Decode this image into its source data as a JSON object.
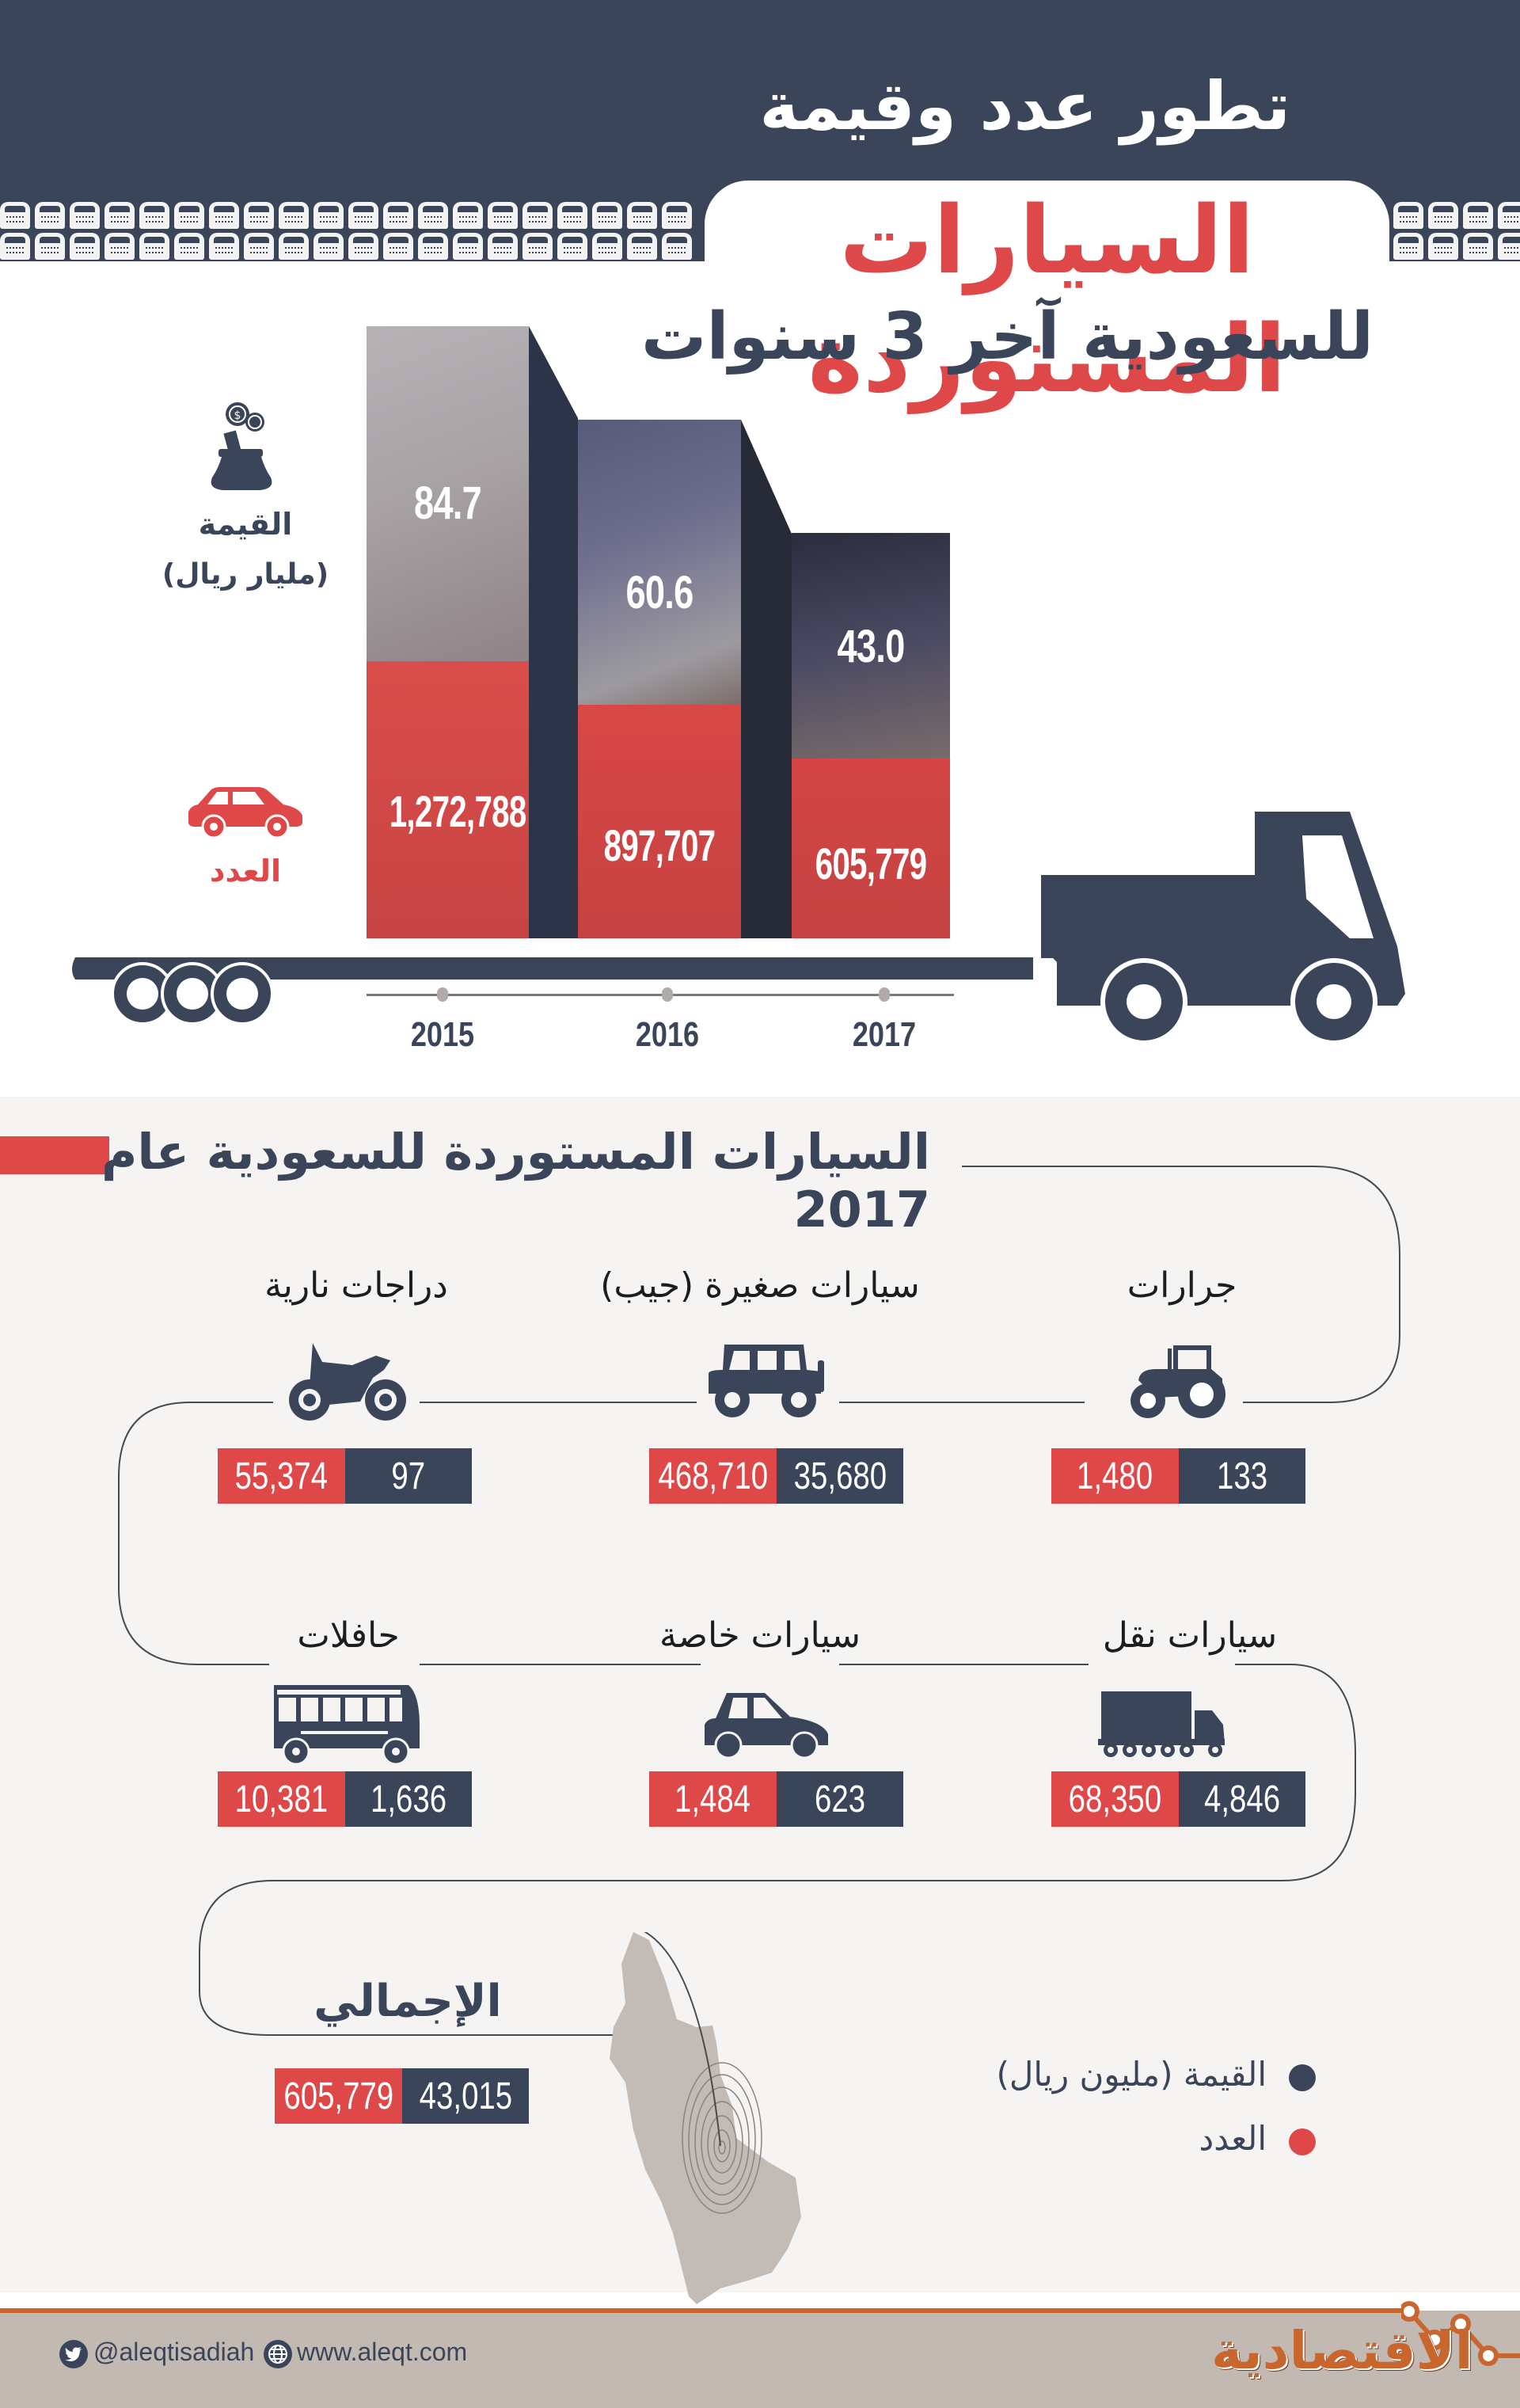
{
  "header": {
    "title_line1": "تطور عدد وقيمة",
    "title_line2": "السيارات المستوردة",
    "title_line3": "للسعودية آخر 3 سنوات"
  },
  "chart_legend": {
    "value_label": "القيمة",
    "value_unit": "(مليار ريال)",
    "count_label": "العدد",
    "value_icon": "money-bag-icon",
    "count_icon": "car-icon"
  },
  "chart_data": {
    "type": "bar",
    "title": "تطور عدد وقيمة السيارات المستوردة للسعودية آخر 3 سنوات",
    "categories": [
      "2015",
      "2016",
      "2017"
    ],
    "series": [
      {
        "name": "القيمة (مليار ريال)",
        "values": [
          84.7,
          60.6,
          43.0
        ],
        "labels": [
          "84.7",
          "60.6",
          "43.0"
        ],
        "color": "#3b4559"
      },
      {
        "name": "العدد",
        "values": [
          1272788,
          897707,
          605779
        ],
        "labels": [
          "1,272,788",
          "897,707",
          "605,779"
        ],
        "color": "#de4848"
      }
    ],
    "xlabel": "",
    "ylabel": "",
    "grid": false,
    "legend_position": "left"
  },
  "breakdown": {
    "title": "السيارات المستوردة للسعودية عام 2017",
    "items": [
      {
        "label": "جرارات",
        "icon": "tractor-icon",
        "count": "1,480",
        "value": "133"
      },
      {
        "label": "سيارات صغيرة (جيب)",
        "icon": "jeep-icon",
        "count": "468,710",
        "value": "35,680"
      },
      {
        "label": "دراجات نارية",
        "icon": "motorcycle-icon",
        "count": "55,374",
        "value": "97"
      },
      {
        "label": "سيارات نقل",
        "icon": "truck-icon",
        "count": "68,350",
        "value": "4,846"
      },
      {
        "label": "سيارات خاصة",
        "icon": "car-icon",
        "count": "1,484",
        "value": "623"
      },
      {
        "label": "حافلات",
        "icon": "bus-icon",
        "count": "10,381",
        "value": "1,636"
      }
    ],
    "total": {
      "label": "الإجمالي",
      "count": "605,779",
      "value": "43,015"
    },
    "legend": {
      "value_label": "القيمة (مليون ريال)",
      "count_label": "العدد",
      "value_color": "#3b4559",
      "count_color": "#de4848"
    }
  },
  "footer": {
    "twitter": "@aleqtisadiah",
    "website": "www.aleqt.com",
    "logo": "الاقتصادية"
  },
  "colors": {
    "navy": "#3b4559",
    "red": "#de4848",
    "light_bg": "#f5f4f2",
    "footer_bg": "#c1b9b2",
    "brand_orange": "#c8662d",
    "map_gray": "#c3bbb5"
  }
}
